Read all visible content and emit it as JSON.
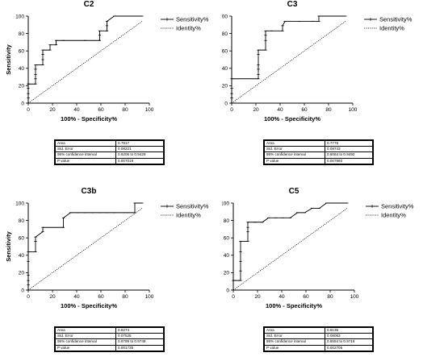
{
  "chart_data": [
    {
      "type": "line",
      "title": "C2",
      "xlabel": "100% - Specificity%",
      "ylabel": "Sensitivity",
      "xlim": [
        0,
        100
      ],
      "ylim": [
        0,
        100
      ],
      "xticks": [
        "0",
        "20",
        "40",
        "60",
        "80",
        "100"
      ],
      "yticks": [
        "0",
        "20",
        "40",
        "60",
        "80",
        "100"
      ],
      "legend_position": "top-right",
      "series": [
        {
          "name": "Sensitivity%",
          "style": "solid-with-markers",
          "x": [
            0,
            0,
            0,
            0,
            0,
            0,
            6,
            6,
            6,
            6,
            6,
            12,
            12,
            12,
            12,
            18,
            18,
            23,
            23,
            29,
            47,
            59,
            59,
            59,
            65,
            65,
            65,
            71,
            94
          ],
          "y": [
            0,
            6,
            11,
            17,
            22,
            22,
            22,
            28,
            33,
            39,
            44,
            44,
            50,
            56,
            61,
            61,
            67,
            67,
            72,
            72,
            72,
            72,
            78,
            83,
            83,
            89,
            94,
            100,
            100
          ]
        },
        {
          "name": "Identity%",
          "style": "dotted",
          "x": [
            0,
            94
          ],
          "y": [
            0,
            94
          ]
        }
      ],
      "table": [
        {
          "label": "Area",
          "value": "0.7817"
        },
        {
          "label": "Std. Error",
          "value": "0.08221"
        },
        {
          "label": "95% confidence interval",
          "value": "0.6206 to 0.9429"
        },
        {
          "label": "P value",
          "value": "0.007019"
        }
      ]
    },
    {
      "type": "line",
      "title": "C3",
      "xlabel": "100% - Specificity%",
      "ylabel": "Sensitivity",
      "xlim": [
        0,
        100
      ],
      "ylim": [
        0,
        100
      ],
      "xticks": [
        "0",
        "20",
        "40",
        "60",
        "80",
        "100"
      ],
      "yticks": [
        "0",
        "20",
        "40",
        "60",
        "80",
        "100"
      ],
      "legend_position": "top-right",
      "series": [
        {
          "name": "Sensitivity%",
          "style": "solid-with-markers",
          "x": [
            0,
            0,
            0,
            0,
            0,
            22,
            22,
            22,
            22,
            22,
            22,
            28,
            28,
            28,
            28,
            33,
            42,
            42,
            44,
            56,
            67,
            72,
            72,
            94
          ],
          "y": [
            0,
            6,
            11,
            17,
            28,
            28,
            33,
            39,
            44,
            56,
            61,
            61,
            72,
            78,
            83,
            83,
            83,
            89,
            94,
            94,
            94,
            94,
            100,
            100
          ]
        },
        {
          "name": "Identity%",
          "style": "dotted",
          "x": [
            0,
            94
          ],
          "y": [
            0,
            94
          ]
        }
      ],
      "table": [
        {
          "label": "Area",
          "value": "0.7778"
        },
        {
          "label": "Std. Error",
          "value": "0.08743"
        },
        {
          "label": "95% confidence interval",
          "value": "0.6064 to 0.9492"
        },
        {
          "label": "P value",
          "value": "0.007860"
        }
      ]
    },
    {
      "type": "line",
      "title": "C3b",
      "xlabel": "100% - Specificity%",
      "ylabel": "Sensitivity",
      "xlim": [
        0,
        100
      ],
      "ylim": [
        0,
        100
      ],
      "xticks": [
        "0",
        "20",
        "40",
        "60",
        "80",
        "100"
      ],
      "yticks": [
        "0",
        "20",
        "40",
        "60",
        "80",
        "100"
      ],
      "legend_position": "top-right",
      "series": [
        {
          "name": "Sensitivity%",
          "style": "solid-with-markers",
          "x": [
            0,
            0,
            0,
            0,
            0,
            0,
            6,
            6,
            6,
            12,
            12,
            29,
            29,
            35,
            41,
            47,
            53,
            59,
            65,
            71,
            82,
            88,
            88,
            94
          ],
          "y": [
            0,
            6,
            11,
            17,
            33,
            44,
            44,
            56,
            61,
            67,
            72,
            72,
            83,
            89,
            89,
            89,
            89,
            89,
            89,
            89,
            89,
            89,
            100,
            100
          ]
        },
        {
          "name": "Identity%",
          "style": "dotted",
          "x": [
            0,
            94
          ],
          "y": [
            0,
            94
          ]
        }
      ],
      "table": [
        {
          "label": "Area",
          "value": "0.8274"
        },
        {
          "label": "Std. Error",
          "value": "0.07525"
        },
        {
          "label": "95% confidence interval",
          "value": "0.6799 to 0.9749"
        },
        {
          "label": "P value",
          "value": "0.001735"
        }
      ]
    },
    {
      "type": "line",
      "title": "C5",
      "xlabel": "100% - Specificity%",
      "ylabel": "Sensitivity",
      "xlim": [
        0,
        100
      ],
      "ylim": [
        0,
        100
      ],
      "xticks": [
        "0",
        "20",
        "40",
        "60",
        "80",
        "100"
      ],
      "yticks": [
        "0",
        "20",
        "40",
        "60",
        "80",
        "100"
      ],
      "legend_position": "top-right",
      "series": [
        {
          "name": "Sensitivity%",
          "style": "solid-with-markers",
          "x": [
            0,
            0,
            6,
            6,
            6,
            6,
            6,
            6,
            12,
            12,
            12,
            12,
            18,
            24,
            29,
            35,
            41,
            47,
            53,
            59,
            65,
            71,
            77,
            82,
            94
          ],
          "y": [
            0,
            11,
            11,
            22,
            33,
            44,
            56,
            56,
            56,
            67,
            72,
            78,
            78,
            78,
            83,
            83,
            83,
            83,
            89,
            89,
            94,
            94,
            100,
            100,
            100
          ]
        },
        {
          "name": "Identity%",
          "style": "dotted",
          "x": [
            0,
            94
          ],
          "y": [
            0,
            94
          ]
        }
      ],
      "table": [
        {
          "label": "Area",
          "value": "0.8135"
        },
        {
          "label": "Std. Error",
          "value": "0.08063"
        },
        {
          "label": "95% confidence interval",
          "value": "0.6554 to 0.9716"
        },
        {
          "label": "P value",
          "value": "0.002705"
        }
      ]
    }
  ]
}
